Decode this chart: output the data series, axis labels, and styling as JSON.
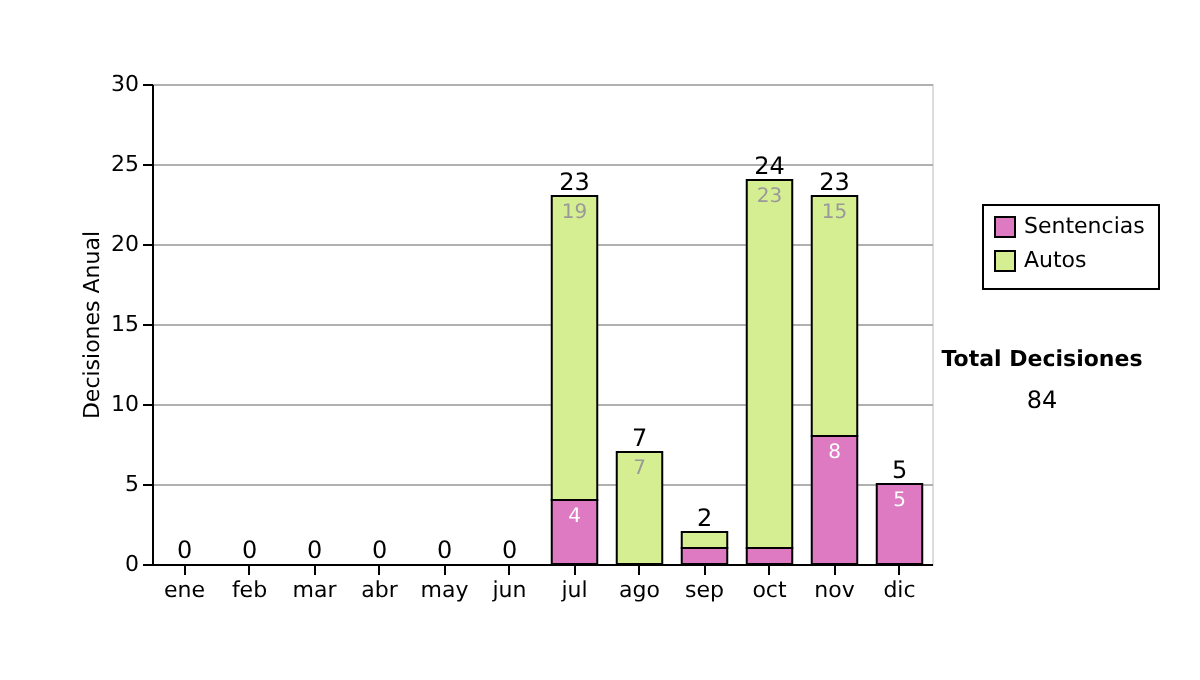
{
  "chart_data": {
    "type": "bar",
    "stacked": true,
    "ylabel": "Decisiones Anual",
    "categories": [
      "ene",
      "feb",
      "mar",
      "abr",
      "may",
      "jun",
      "jul",
      "ago",
      "sep",
      "oct",
      "nov",
      "dic"
    ],
    "series": [
      {
        "name": "Sentencias",
        "color": "#dd7ac2",
        "values": [
          0,
          0,
          0,
          0,
          0,
          0,
          4,
          0,
          1,
          1,
          8,
          5
        ],
        "value_labels": [
          null,
          null,
          null,
          null,
          null,
          null,
          "4",
          null,
          null,
          null,
          "8",
          "5"
        ]
      },
      {
        "name": "Autos",
        "color": "#d6ee92",
        "values": [
          0,
          0,
          0,
          0,
          0,
          0,
          19,
          7,
          1,
          23,
          15,
          0
        ],
        "value_labels": [
          null,
          null,
          null,
          null,
          null,
          null,
          "19",
          "7",
          null,
          "23",
          "15",
          null
        ]
      }
    ],
    "totals": [
      "0",
      "0",
      "0",
      "0",
      "0",
      "0",
      "23",
      "7",
      "2",
      "24",
      "23",
      "5"
    ],
    "ylim": [
      0,
      30
    ],
    "yticks": [
      0,
      5,
      10,
      15,
      20,
      25,
      30
    ],
    "grid": "y",
    "legend": "right",
    "annotations": [
      "Total Decisiones",
      "84"
    ]
  }
}
